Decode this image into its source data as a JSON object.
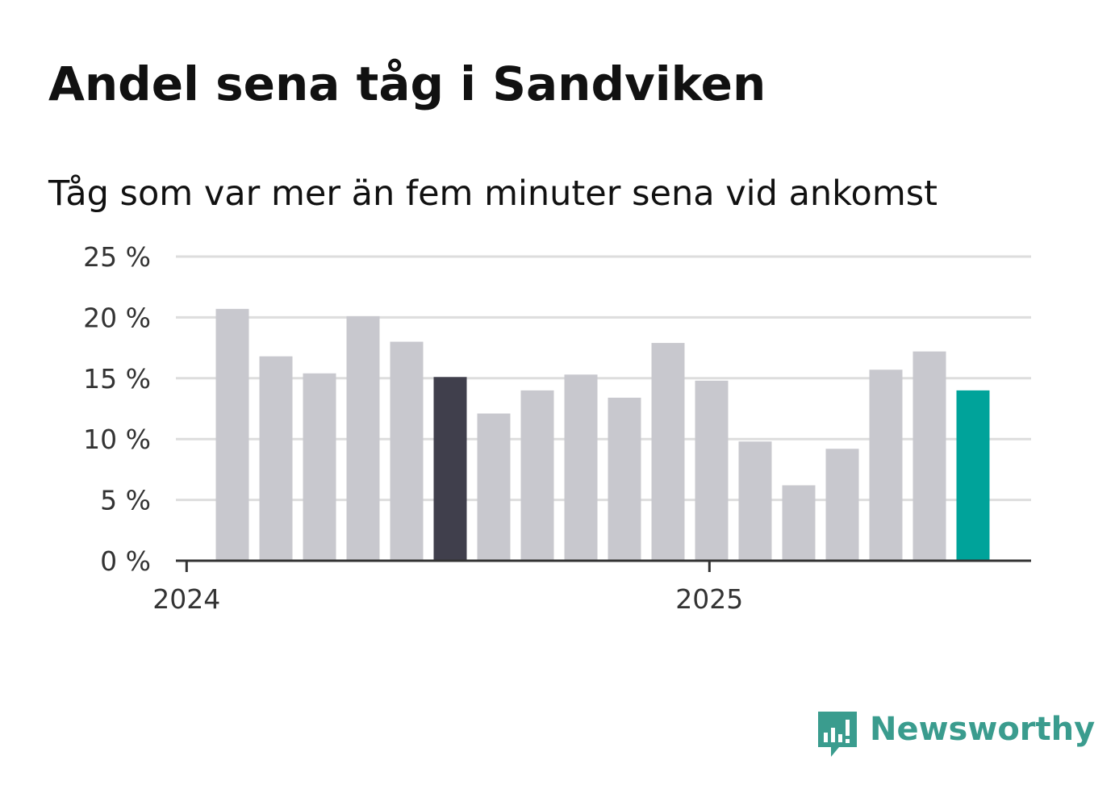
{
  "header": {
    "title": "Andel sena tåg i Sandviken",
    "subtitle": "Tåg som var mer än fem minuter sena vid ankomst"
  },
  "brand": {
    "name": "Newsworthy",
    "color": "#3a9c8e"
  },
  "chart_data": {
    "type": "bar",
    "ylim": [
      0,
      25
    ],
    "y_ticks": [
      "0 %",
      "5 %",
      "10 %",
      "15 %",
      "20 %",
      "25 %"
    ],
    "y_tick_values": [
      0,
      5,
      10,
      15,
      20,
      25
    ],
    "x_ticks": [
      "2024",
      "2025"
    ],
    "grid": true,
    "values": [
      20.7,
      16.8,
      15.4,
      20.1,
      18.0,
      15.1,
      12.1,
      14.0,
      15.3,
      13.4,
      17.9,
      14.8,
      9.8,
      6.2,
      9.2,
      15.7,
      17.2,
      14.0
    ],
    "colors": {
      "default": "#c8c8ce",
      "highlight_dark": "#403f4c",
      "highlight_latest": "#00a39a",
      "grid": "#dddddd",
      "axis": "#333333"
    },
    "highlight_dark_index": 5,
    "highlight_latest_index": 17
  }
}
